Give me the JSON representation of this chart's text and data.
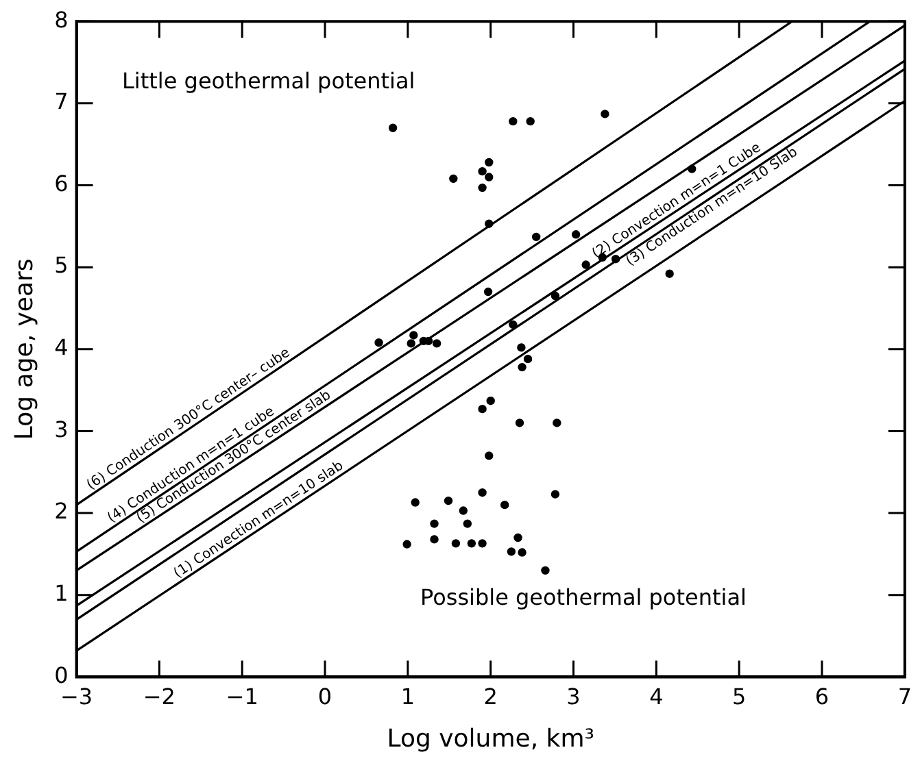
{
  "chart_data": {
    "type": "scatter",
    "xlabel": "Log volume, km³",
    "ylabel": "Log age, years",
    "xlim": [
      -3,
      7
    ],
    "xticks": [
      -3,
      -2,
      -1,
      0,
      1,
      2,
      3,
      4,
      5,
      6,
      7
    ],
    "ylim": [
      0,
      8
    ],
    "yticks": [
      0,
      1,
      2,
      3,
      4,
      5,
      6,
      7,
      8
    ],
    "grid": false,
    "legend": false,
    "marker": "circle",
    "annotations": [
      "Little geothermal potential",
      "Possible geothermal potential"
    ],
    "series": [
      {
        "type": "line",
        "marker": "none",
        "name": "(6) Conduction 300°C center– cube",
        "color": "#000000",
        "x": [
          -3,
          5.64
        ],
        "values": [
          2.1,
          8
        ]
      },
      {
        "type": "line",
        "marker": "none",
        "name": "(4) Conduction m=n=1 cube",
        "color": "#000000",
        "x": [
          -3,
          6.58
        ],
        "values": [
          1.53,
          8
        ]
      },
      {
        "type": "line",
        "marker": "none",
        "name": "(5) Conduction 300°C center slab",
        "color": "#000000",
        "x": [
          -3,
          7
        ],
        "values": [
          1.3,
          7.95
        ]
      },
      {
        "type": "line",
        "marker": "none",
        "name": "(2) Convection m=n=1 Cube",
        "color": "#000000",
        "x": [
          -3,
          7
        ],
        "values": [
          0.87,
          7.52
        ]
      },
      {
        "type": "line",
        "marker": "none",
        "name": "(3) Conduction m=n=10 Slab",
        "color": "#000000",
        "x": [
          -3,
          7
        ],
        "values": [
          0.7,
          7.42
        ]
      },
      {
        "type": "line",
        "marker": "none",
        "name": "(1) Convection m=n=10 slab",
        "color": "#000000",
        "x": [
          -3,
          7
        ],
        "values": [
          0.32,
          7.03
        ]
      },
      {
        "type": "scatter",
        "color": "#000000",
        "x": [
          0.82,
          2.27,
          1.55,
          1.98,
          1.9,
          1.98,
          1.9,
          1.98,
          1.97,
          0.65,
          1.07,
          1.04,
          1.19,
          1.25,
          1.35,
          2.48,
          3.38,
          4.43,
          2.55,
          3.03,
          3.15,
          3.35,
          3.51,
          4.16,
          2.78,
          2.27,
          2.37,
          2.45,
          2.38,
          2.0,
          1.9,
          1.98,
          1.9,
          1.09,
          1.49,
          1.67,
          2.17,
          1.32,
          1.72,
          0.99,
          1.32,
          1.58,
          1.77,
          1.9,
          2.25,
          2.35,
          2.8,
          2.78,
          2.33,
          2.38,
          2.66
        ],
        "values": [
          6.7,
          6.78,
          6.08,
          6.28,
          6.17,
          6.1,
          5.97,
          5.53,
          4.7,
          4.08,
          4.17,
          4.07,
          4.1,
          4.1,
          4.07,
          6.78,
          6.87,
          6.2,
          5.37,
          5.4,
          5.03,
          5.12,
          5.1,
          4.92,
          4.65,
          4.3,
          4.02,
          3.88,
          3.78,
          3.37,
          3.27,
          2.7,
          2.25,
          2.13,
          2.15,
          2.03,
          2.1,
          1.87,
          1.87,
          1.62,
          1.68,
          1.63,
          1.63,
          1.63,
          1.53,
          3.1,
          3.1,
          2.23,
          1.7,
          1.52,
          1.3
        ]
      }
    ]
  }
}
